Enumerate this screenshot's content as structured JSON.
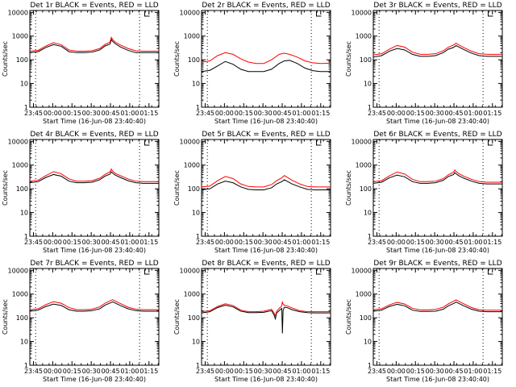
{
  "figure": {
    "y_ticks": [
      "1",
      "10",
      "100",
      "1000",
      "10000"
    ],
    "x_ticks": [
      "23:45",
      "00:00",
      "00:15",
      "00:30",
      "00:45",
      "01:00",
      "01:15"
    ],
    "ylabel": "Counts/sec",
    "xlabel": "Start Time (16-Jun-08 23:40:40)",
    "colors": {
      "events": "#000000",
      "lld": "#ff0000"
    }
  },
  "chart_data": [
    {
      "type": "line",
      "title": "Det 1r BLACK = Events, RED = LLD",
      "x_range_min": [
        -4.5,
        96
      ],
      "ylim": [
        1,
        12000
      ],
      "y_scale": "log",
      "vlines_min": [
        0,
        81
      ],
      "series": [
        {
          "x": [
            -4.5,
            2,
            8,
            14,
            20,
            26,
            32,
            38,
            44,
            50,
            54,
            58,
            59,
            60,
            62,
            66,
            72,
            78,
            84,
            90,
            96
          ],
          "values": [
            200,
            220,
            330,
            440,
            370,
            220,
            200,
            200,
            210,
            260,
            380,
            460,
            720,
            600,
            480,
            350,
            250,
            200,
            200,
            200,
            200
          ]
        },
        {
          "x": [
            -4.5,
            2,
            8,
            14,
            20,
            26,
            32,
            38,
            44,
            50,
            54,
            58,
            59,
            60,
            62,
            66,
            72,
            78,
            84,
            90,
            96
          ],
          "values": [
            230,
            250,
            380,
            530,
            430,
            260,
            230,
            230,
            240,
            300,
            440,
            560,
            880,
            720,
            560,
            420,
            300,
            240,
            230,
            230,
            230
          ]
        }
      ]
    },
    {
      "type": "line",
      "title": "Det 2r BLACK = Events, RED = LLD",
      "x_range_min": [
        -4.5,
        96
      ],
      "ylim": [
        1,
        12000
      ],
      "y_scale": "log",
      "vlines_min": [
        0,
        81
      ],
      "series": [
        {
          "x": [
            -4.5,
            2,
            8,
            14,
            20,
            26,
            32,
            38,
            44,
            50,
            56,
            60,
            64,
            70,
            76,
            82,
            88,
            96
          ],
          "values": [
            32,
            36,
            55,
            85,
            65,
            40,
            32,
            32,
            32,
            40,
            70,
            90,
            95,
            70,
            45,
            35,
            32,
            32
          ]
        },
        {
          "x": [
            -4.5,
            2,
            8,
            14,
            20,
            26,
            32,
            38,
            44,
            50,
            56,
            60,
            64,
            70,
            76,
            82,
            88,
            96
          ],
          "values": [
            80,
            90,
            150,
            200,
            170,
            110,
            80,
            70,
            70,
            100,
            170,
            190,
            170,
            130,
            90,
            75,
            70,
            72
          ]
        }
      ]
    },
    {
      "type": "line",
      "title": "Det 3r BLACK = Events, RED = LLD",
      "x_range_min": [
        -4.5,
        96
      ],
      "ylim": [
        1,
        12000
      ],
      "y_scale": "log",
      "vlines_min": [
        0,
        81
      ],
      "series": [
        {
          "x": [
            -4.5,
            2,
            8,
            14,
            20,
            26,
            32,
            38,
            44,
            50,
            54,
            58,
            60,
            62,
            66,
            72,
            78,
            84,
            90,
            96
          ],
          "values": [
            130,
            150,
            230,
            300,
            260,
            170,
            140,
            140,
            150,
            200,
            280,
            330,
            400,
            350,
            270,
            190,
            150,
            140,
            140,
            140
          ]
        },
        {
          "x": [
            -4.5,
            2,
            8,
            14,
            20,
            26,
            32,
            38,
            44,
            50,
            54,
            58,
            60,
            62,
            66,
            72,
            78,
            84,
            90,
            96
          ],
          "values": [
            160,
            180,
            280,
            400,
            340,
            210,
            170,
            170,
            180,
            240,
            340,
            420,
            500,
            430,
            330,
            230,
            180,
            170,
            170,
            170
          ]
        }
      ]
    },
    {
      "type": "line",
      "title": "Det 4r BLACK = Events, RED = LLD",
      "x_range_min": [
        -4.5,
        96
      ],
      "ylim": [
        1,
        12000
      ],
      "y_scale": "log",
      "vlines_min": [
        0,
        81
      ],
      "series": [
        {
          "x": [
            -4.5,
            2,
            8,
            14,
            20,
            26,
            32,
            38,
            44,
            50,
            54,
            58,
            59,
            60,
            62,
            66,
            72,
            78,
            84,
            90,
            96
          ],
          "values": [
            180,
            200,
            300,
            400,
            340,
            210,
            180,
            180,
            190,
            240,
            340,
            420,
            520,
            460,
            380,
            300,
            220,
            180,
            170,
            170,
            170
          ]
        },
        {
          "x": [
            -4.5,
            2,
            8,
            14,
            20,
            26,
            32,
            38,
            44,
            50,
            54,
            58,
            59,
            60,
            62,
            66,
            72,
            78,
            84,
            90,
            96
          ],
          "values": [
            210,
            230,
            360,
            530,
            430,
            260,
            210,
            210,
            220,
            280,
            400,
            520,
            680,
            560,
            450,
            360,
            260,
            210,
            200,
            200,
            200
          ]
        }
      ]
    },
    {
      "type": "line",
      "title": "Det 5r BLACK = Events, RED = LLD",
      "x_range_min": [
        -4.5,
        96
      ],
      "ylim": [
        1,
        12000
      ],
      "y_scale": "log",
      "vlines_min": [
        0,
        81
      ],
      "series": [
        {
          "x": [
            -4.5,
            2,
            8,
            14,
            20,
            26,
            32,
            38,
            44,
            50,
            54,
            58,
            60,
            62,
            66,
            72,
            78,
            84,
            90,
            96
          ],
          "values": [
            90,
            100,
            160,
            210,
            180,
            120,
            95,
            90,
            90,
            110,
            160,
            200,
            240,
            210,
            160,
            120,
            95,
            90,
            90,
            90
          ]
        },
        {
          "x": [
            -4.5,
            2,
            8,
            14,
            20,
            26,
            32,
            38,
            44,
            50,
            54,
            58,
            60,
            62,
            66,
            72,
            78,
            84,
            90,
            96
          ],
          "values": [
            120,
            130,
            220,
            330,
            270,
            160,
            125,
            120,
            120,
            150,
            220,
            290,
            360,
            310,
            230,
            160,
            125,
            120,
            120,
            120
          ]
        }
      ]
    },
    {
      "type": "line",
      "title": "Det 6r BLACK = Events, RED = LLD",
      "x_range_min": [
        -4.5,
        96
      ],
      "ylim": [
        1,
        12000
      ],
      "y_scale": "log",
      "vlines_min": [
        0,
        81
      ],
      "series": [
        {
          "x": [
            -4.5,
            2,
            8,
            14,
            20,
            26,
            32,
            38,
            44,
            50,
            54,
            58,
            59,
            60,
            62,
            66,
            72,
            78,
            84,
            90,
            96
          ],
          "values": [
            170,
            190,
            290,
            380,
            320,
            200,
            170,
            170,
            180,
            230,
            330,
            400,
            480,
            430,
            360,
            280,
            210,
            170,
            160,
            160,
            160
          ]
        },
        {
          "x": [
            -4.5,
            2,
            8,
            14,
            20,
            26,
            32,
            38,
            44,
            50,
            54,
            58,
            59,
            60,
            62,
            66,
            72,
            78,
            84,
            90,
            96
          ],
          "values": [
            200,
            220,
            350,
            510,
            420,
            250,
            200,
            200,
            210,
            270,
            390,
            500,
            620,
            540,
            440,
            340,
            250,
            200,
            190,
            190,
            190
          ]
        }
      ]
    },
    {
      "type": "line",
      "title": "Det 7r BLACK = Events, RED = LLD",
      "x_range_min": [
        -4.5,
        96
      ],
      "ylim": [
        1,
        12000
      ],
      "y_scale": "log",
      "vlines_min": [
        0,
        81
      ],
      "series": [
        {
          "x": [
            -4.5,
            2,
            8,
            14,
            20,
            26,
            32,
            38,
            44,
            50,
            54,
            58,
            60,
            62,
            66,
            72,
            78,
            84,
            90,
            96
          ],
          "values": [
            190,
            210,
            300,
            380,
            330,
            220,
            190,
            190,
            200,
            240,
            340,
            420,
            470,
            420,
            330,
            240,
            200,
            190,
            190,
            190
          ]
        },
        {
          "x": [
            -4.5,
            2,
            8,
            14,
            20,
            26,
            32,
            38,
            44,
            50,
            54,
            58,
            60,
            62,
            66,
            72,
            78,
            84,
            90,
            96
          ],
          "values": [
            220,
            240,
            360,
            480,
            410,
            270,
            220,
            220,
            230,
            290,
            410,
            520,
            580,
            510,
            400,
            280,
            230,
            220,
            220,
            220
          ]
        }
      ]
    },
    {
      "type": "line",
      "title": "Det 8r BLACK = Events, RED = LLD",
      "x_range_min": [
        -4.5,
        96
      ],
      "ylim": [
        1,
        12000
      ],
      "y_scale": "log",
      "vlines_min": [
        0,
        81
      ],
      "series": [
        {
          "x": [
            -4.5,
            2,
            8,
            14,
            20,
            26,
            32,
            38,
            44,
            50,
            52,
            53,
            54,
            56,
            58,
            58.5,
            59,
            60,
            62,
            66,
            72,
            78,
            84,
            90,
            96
          ],
          "values": [
            160,
            180,
            270,
            340,
            290,
            190,
            165,
            165,
            170,
            200,
            130,
            90,
            160,
            200,
            250,
            22,
            200,
            280,
            270,
            220,
            180,
            165,
            160,
            160,
            160
          ]
        },
        {
          "x": [
            -4.5,
            2,
            8,
            14,
            20,
            26,
            32,
            38,
            44,
            50,
            52,
            53,
            54,
            56,
            58,
            58.5,
            59,
            60,
            62,
            66,
            72,
            78,
            84,
            90,
            96
          ],
          "values": [
            180,
            200,
            300,
            390,
            330,
            210,
            180,
            180,
            190,
            230,
            160,
            120,
            190,
            250,
            320,
            480,
            380,
            340,
            320,
            260,
            200,
            180,
            180,
            180,
            180
          ]
        }
      ]
    },
    {
      "type": "line",
      "title": "Det 9r BLACK = Events, RED = LLD",
      "x_range_min": [
        -4.5,
        96
      ],
      "ylim": [
        1,
        12000
      ],
      "y_scale": "log",
      "vlines_min": [
        0,
        81
      ],
      "series": [
        {
          "x": [
            -4.5,
            2,
            8,
            14,
            20,
            26,
            32,
            38,
            44,
            50,
            54,
            58,
            60,
            62,
            66,
            72,
            78,
            84,
            90,
            96
          ],
          "values": [
            190,
            210,
            300,
            370,
            320,
            210,
            185,
            185,
            190,
            230,
            320,
            400,
            460,
            410,
            320,
            230,
            190,
            180,
            180,
            180
          ]
        },
        {
          "x": [
            -4.5,
            2,
            8,
            14,
            20,
            26,
            32,
            38,
            44,
            50,
            54,
            58,
            60,
            62,
            66,
            72,
            78,
            84,
            90,
            96
          ],
          "values": [
            220,
            240,
            350,
            450,
            380,
            250,
            215,
            215,
            225,
            280,
            390,
            500,
            570,
            500,
            390,
            270,
            220,
            210,
            210,
            210
          ]
        }
      ]
    }
  ]
}
